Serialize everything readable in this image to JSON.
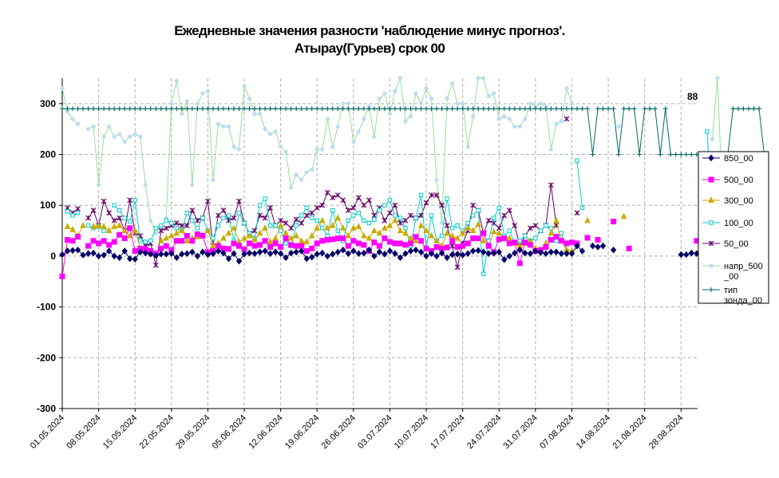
{
  "chart_data": {
    "type": "line",
    "title": "Ежедневные значения разности 'наблюдение минус прогноз'.",
    "subtitle": "Атырау(Гурьев)    срок 00",
    "ylim": [
      -300,
      350
    ],
    "yticks": [
      -300,
      -200,
      -100,
      0,
      100,
      200,
      300
    ],
    "grid": true,
    "legend_position": "right",
    "annotation": "88",
    "x_start": "2024-05-01",
    "x_end": "2024-09-01",
    "x_tick_labels": [
      "01.05.2024",
      "08.05.2024",
      "15.05.2024",
      "22.05.2024",
      "29.05.2024",
      "05.06.2024",
      "12.06.2024",
      "19.06.2024",
      "26.06.2024",
      "03.07.2024",
      "10.07.2024",
      "17.07.2024",
      "24.07.2024",
      "31.07.2024",
      "07.08.2024",
      "14.08.2024",
      "21.08.2024",
      "28.08.2024"
    ],
    "series": [
      {
        "name": "850_00",
        "color": "#000066",
        "marker": "diamond",
        "line": true,
        "values": [
          3,
          10,
          11,
          12,
          2,
          5,
          6,
          0,
          2,
          10,
          0,
          -3,
          10,
          -5,
          -6,
          8,
          6,
          4,
          1,
          4,
          4,
          5,
          -3,
          4,
          5,
          8,
          0,
          8,
          3,
          5,
          10,
          6,
          -5,
          5,
          -10,
          4,
          6,
          5,
          8,
          10,
          5,
          8,
          5,
          -3,
          6,
          8,
          10,
          -5,
          -2,
          4,
          6,
          0,
          4,
          8,
          12,
          5,
          10,
          5,
          6,
          12,
          0,
          8,
          4,
          10,
          5,
          -3,
          5,
          10,
          12,
          8,
          0,
          5,
          0,
          6,
          -3,
          3,
          4,
          2,
          5,
          10,
          11,
          8,
          5,
          6,
          8,
          -7,
          0,
          6,
          12,
          6,
          5,
          10,
          7,
          5,
          8,
          8,
          5,
          5,
          5,
          20,
          10,
          null,
          20,
          18,
          20,
          null,
          12,
          null,
          null,
          null,
          null,
          null,
          null,
          null,
          null,
          null,
          null,
          null,
          null,
          3,
          3,
          6,
          5,
          5,
          6,
          12
        ]
      },
      {
        "name": "500_00",
        "color": "#ff00ff",
        "marker": "square",
        "line": true,
        "values": [
          -40,
          32,
          30,
          38,
          null,
          20,
          30,
          25,
          30,
          22,
          28,
          42,
          35,
          55,
          10,
          15,
          14,
          10,
          5,
          15,
          20,
          12,
          30,
          30,
          40,
          30,
          43,
          40,
          8,
          10,
          20,
          15,
          14,
          25,
          20,
          13,
          25,
          20,
          22,
          30,
          18,
          25,
          18,
          35,
          22,
          20,
          20,
          10,
          15,
          25,
          30,
          32,
          33,
          35,
          35,
          20,
          30,
          25,
          22,
          10,
          27,
          20,
          35,
          28,
          25,
          25,
          22,
          25,
          38,
          30,
          15,
          10,
          18,
          15,
          17,
          30,
          18,
          20,
          25,
          35,
          35,
          45,
          20,
          8,
          33,
          35,
          25,
          27,
          -14,
          27,
          22,
          10,
          12,
          18,
          32,
          38,
          30,
          25,
          27,
          25,
          null,
          36,
          null,
          32,
          null,
          null,
          68,
          null,
          null,
          15,
          null,
          null,
          null,
          null,
          null,
          null,
          null,
          null,
          null,
          null,
          null,
          null,
          30,
          28,
          25,
          28,
          35,
          38
        ]
      },
      {
        "name": "300_00",
        "color": "#ccaa00",
        "marker": "triangle",
        "line": true,
        "values": [
          null,
          58,
          52,
          40,
          60,
          null,
          58,
          60,
          58,
          50,
          58,
          60,
          50,
          40,
          50,
          15,
          12,
          10,
          null,
          30,
          35,
          40,
          45,
          50,
          30,
          35,
          38,
          40,
          50,
          20,
          25,
          35,
          45,
          55,
          28,
          35,
          40,
          32,
          45,
          55,
          28,
          35,
          60,
          45,
          35,
          40,
          30,
          28,
          40,
          55,
          70,
          55,
          60,
          75,
          55,
          40,
          55,
          58,
          40,
          35,
          50,
          45,
          55,
          60,
          70,
          50,
          45,
          35,
          30,
          60,
          50,
          40,
          30,
          20,
          45,
          40,
          35,
          45,
          55,
          50,
          62,
          30,
          20,
          48,
          45,
          35,
          35,
          25,
          20,
          25,
          30,
          15,
          12,
          25,
          45,
          70,
          30,
          12,
          10,
          null,
          null,
          70,
          null,
          null,
          null,
          null,
          null,
          null,
          78,
          null,
          null,
          null,
          null,
          null,
          null,
          null,
          null,
          null,
          null,
          null,
          null,
          null,
          null,
          35,
          75,
          35,
          30,
          75
        ]
      },
      {
        "name": "100_00",
        "color": "#00cccc",
        "marker": "square-open",
        "line": true,
        "values": [
          null,
          88,
          80,
          85,
          null,
          60,
          55,
          58,
          50,
          null,
          100,
          90,
          75,
          68,
          110,
          30,
          28,
          30,
          55,
          60,
          70,
          65,
          55,
          50,
          85,
          70,
          55,
          75,
          50,
          35,
          60,
          75,
          80,
          30,
          85,
          65,
          45,
          35,
          100,
          113,
          60,
          60,
          50,
          25,
          20,
          60,
          80,
          95,
          75,
          70,
          55,
          40,
          90,
          50,
          30,
          70,
          80,
          85,
          70,
          65,
          72,
          90,
          100,
          110,
          80,
          75,
          55,
          20,
          75,
          120,
          15,
          80,
          30,
          40,
          113,
          55,
          60,
          50,
          65,
          80,
          90,
          -35,
          30,
          75,
          95,
          40,
          50,
          25,
          30,
          40,
          30,
          35,
          50,
          60,
          55,
          30,
          45,
          10,
          null,
          188,
          95,
          null,
          null,
          null,
          null,
          null,
          null,
          null,
          null,
          null,
          null,
          null,
          null,
          null,
          null,
          null,
          null,
          null,
          null,
          null,
          null,
          null,
          null,
          null,
          245,
          80,
          30,
          40,
          60
        ]
      },
      {
        "name": "50_00",
        "color": "#660066",
        "marker": "x",
        "line": true,
        "values": [
          null,
          95,
          85,
          93,
          null,
          75,
          90,
          60,
          108,
          85,
          70,
          75,
          50,
          110,
          45,
          40,
          20,
          25,
          -18,
          50,
          55,
          60,
          65,
          60,
          60,
          90,
          70,
          75,
          108,
          20,
          80,
          90,
          70,
          75,
          108,
          65,
          45,
          50,
          80,
          75,
          95,
          60,
          70,
          65,
          55,
          72,
          65,
          80,
          85,
          95,
          100,
          125,
          115,
          120,
          110,
          90,
          95,
          115,
          100,
          110,
          80,
          95,
          70,
          85,
          100,
          65,
          70,
          80,
          75,
          80,
          105,
          120,
          120,
          100,
          60,
          20,
          -22,
          25,
          50,
          100,
          90,
          45,
          70,
          65,
          55,
          80,
          90,
          60,
          20,
          40,
          55,
          60,
          50,
          60,
          140,
          60,
          null,
          270,
          null,
          85,
          null,
          null,
          null,
          null,
          null,
          null,
          null,
          null,
          null,
          null,
          null,
          null,
          null,
          null,
          null,
          null,
          null,
          null,
          null,
          null,
          null,
          null,
          null,
          null,
          null,
          null,
          85
        ]
      },
      {
        "name": "напр_500_00",
        "color": "#bbddee",
        "marker": "circle",
        "line": true,
        "line_color": "#99dd99",
        "values": [
          330,
          285,
          270,
          260,
          null,
          250,
          255,
          140,
          235,
          255,
          235,
          240,
          225,
          235,
          240,
          235,
          140,
          70,
          45,
          55,
          75,
          300,
          345,
          280,
          305,
          140,
          300,
          320,
          325,
          150,
          260,
          255,
          255,
          215,
          210,
          335,
          310,
          280,
          280,
          250,
          240,
          245,
          215,
          205,
          135,
          160,
          150,
          165,
          170,
          210,
          210,
          270,
          215,
          255,
          300,
          300,
          225,
          245,
          270,
          295,
          235,
          310,
          320,
          280,
          325,
          350,
          265,
          275,
          320,
          300,
          330,
          310,
          150,
          65,
          310,
          340,
          300,
          300,
          215,
          275,
          350,
          350,
          315,
          320,
          270,
          275,
          270,
          255,
          255,
          270,
          300,
          295,
          300,
          295,
          210,
          260,
          265,
          330,
          300,
          null,
          null,
          null,
          null,
          null,
          null,
          null,
          null,
          255,
          null,
          null,
          null,
          null,
          null,
          null,
          null,
          null,
          null,
          null,
          null,
          null,
          null,
          null,
          null,
          null,
          null,
          230,
          350,
          100,
          105,
          95
        ]
      },
      {
        "name": "тип зонда_00",
        "color": "#006666",
        "marker": "plus",
        "line": true,
        "values": [
          290,
          290,
          290,
          290,
          290,
          290,
          290,
          290,
          290,
          290,
          290,
          290,
          290,
          290,
          290,
          290,
          290,
          290,
          290,
          290,
          290,
          290,
          290,
          290,
          290,
          290,
          290,
          290,
          290,
          290,
          290,
          290,
          290,
          290,
          290,
          290,
          290,
          290,
          290,
          290,
          290,
          290,
          290,
          290,
          290,
          290,
          290,
          290,
          290,
          290,
          290,
          290,
          290,
          290,
          290,
          290,
          290,
          290,
          290,
          290,
          290,
          290,
          290,
          290,
          290,
          290,
          290,
          290,
          290,
          290,
          290,
          290,
          290,
          290,
          290,
          290,
          290,
          290,
          290,
          290,
          290,
          290,
          290,
          290,
          290,
          290,
          290,
          290,
          290,
          290,
          290,
          290,
          290,
          290,
          290,
          290,
          290,
          290,
          290,
          290,
          290,
          290,
          200,
          290,
          290,
          290,
          290,
          200,
          290,
          290,
          290,
          200,
          290,
          290,
          290,
          200,
          290,
          200,
          200,
          200,
          200,
          200,
          200,
          200,
          200,
          200,
          200,
          200,
          200,
          290,
          290,
          290,
          290,
          290,
          290,
          200
        ]
      }
    ]
  }
}
